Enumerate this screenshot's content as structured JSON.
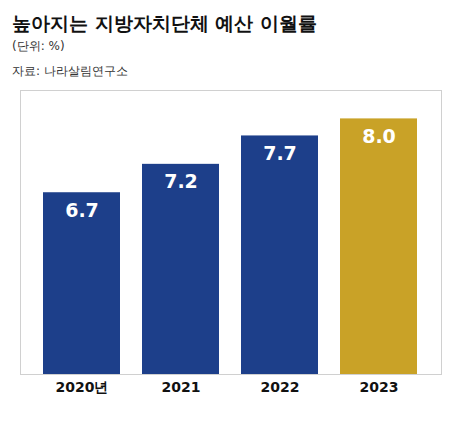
{
  "chart_data": {
    "type": "bar",
    "title": "높아지는 지방자치단체 예산 이월률",
    "subtitle": "(단위: %)",
    "source": "자료: 나라살림연구소",
    "categories": [
      "2020년",
      "2021",
      "2022",
      "2023"
    ],
    "values": [
      6.7,
      7.2,
      7.7,
      8.0
    ],
    "value_labels": [
      "6.7",
      "7.2",
      "7.7",
      "8.0"
    ],
    "colors": [
      "#1d3f8a",
      "#1d3f8a",
      "#1d3f8a",
      "#c9a227"
    ],
    "ylim": [
      3.5,
      8.5
    ],
    "yticks": [],
    "tick_labels": "x",
    "data_labels": true,
    "grid": false
  }
}
